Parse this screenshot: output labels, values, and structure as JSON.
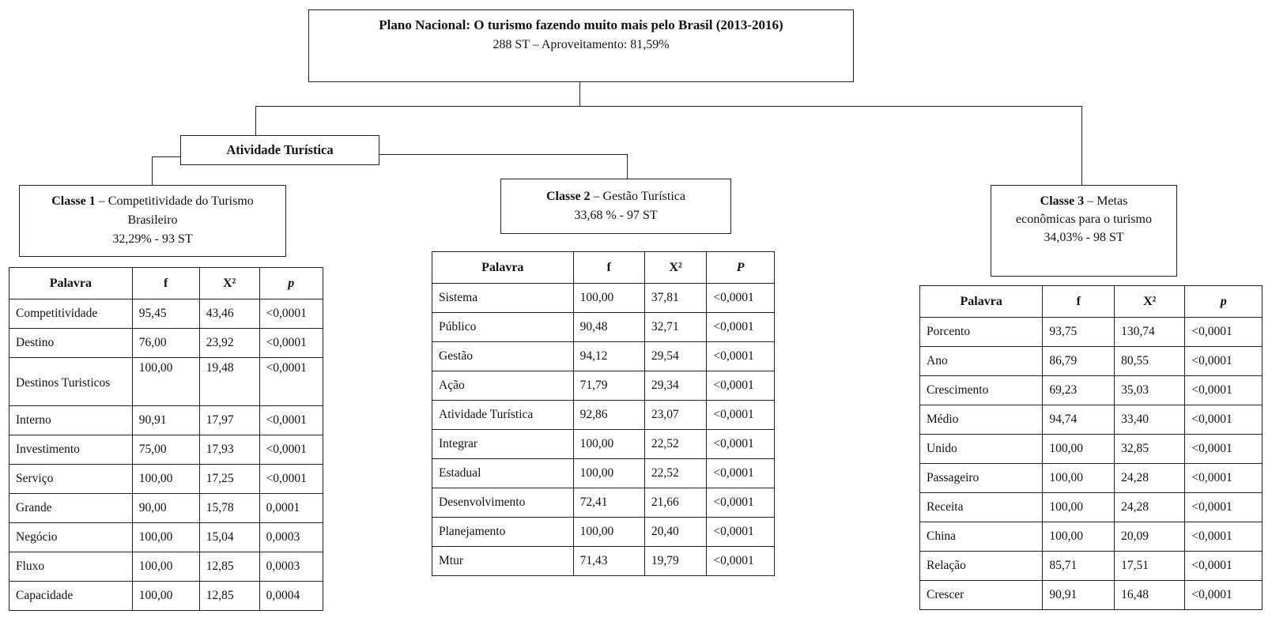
{
  "root": {
    "title": "Plano Nacional: O turismo fazendo  muito mais pelo Brasil (2013-2016)",
    "subtitle": "288 ST  – Aproveitamento:  81,59%"
  },
  "branch": {
    "label": "Atividade Turística"
  },
  "class1": {
    "title_bold": "Classe 1",
    "title_rest": " – Competitividade  do Turismo  Brasileiro",
    "stats": "32,29% - 93 ST"
  },
  "class2": {
    "title_bold": "Classe 2",
    "title_rest": " – Gestão Turística",
    "stats": "33,68 % - 97 ST"
  },
  "class3": {
    "title_bold": "Classe 3",
    "title_rest": " – Metas econômicas para o turismo",
    "stats": "34,03% - 98 ST"
  },
  "headers": {
    "t1": [
      "Palavra",
      "f",
      "X²",
      "p"
    ],
    "t2": [
      "Palavra",
      "f",
      "X²",
      "P"
    ],
    "t3": [
      "Palavra",
      "f",
      "X²",
      "p"
    ]
  },
  "table1": [
    [
      "Competitividade",
      "95,45",
      "43,46",
      "<0,0001"
    ],
    [
      "Destino",
      "76,00",
      "23,92",
      "<0,0001"
    ],
    [
      "Destinos Turisticos",
      "100,00",
      "19,48",
      "<0,0001"
    ],
    [
      "Interno",
      "90,91",
      "17,97",
      "<0,0001"
    ],
    [
      "Investimento",
      "75,00",
      "17,93",
      "<0,0001"
    ],
    [
      "Serviço",
      "100,00",
      "17,25",
      "<0,0001"
    ],
    [
      "Grande",
      "90,00",
      "15,78",
      "0,0001"
    ],
    [
      "Negócio",
      "100,00",
      "15,04",
      "0,0003"
    ],
    [
      "Fluxo",
      "100,00",
      "12,85",
      "0,0003"
    ],
    [
      "Capacidade",
      "100,00",
      "12,85",
      "0,0004"
    ]
  ],
  "table2": [
    [
      "Sistema",
      "100,00",
      "37,81",
      "<0,0001"
    ],
    [
      "Público",
      "90,48",
      "32,71",
      "<0,0001"
    ],
    [
      "Gestão",
      "94,12",
      "29,54",
      "<0,0001"
    ],
    [
      "Ação",
      "71,79",
      "29,34",
      "<0,0001"
    ],
    [
      "Atividade  Turística",
      "92,86",
      "23,07",
      "<0,0001"
    ],
    [
      "Integrar",
      "100,00",
      "22,52",
      "<0,0001"
    ],
    [
      "Estadual",
      "100,00",
      "22,52",
      "<0,0001"
    ],
    [
      "Desenvolvimento",
      "72,41",
      "21,66",
      "<0,0001"
    ],
    [
      "Planejamento",
      "100,00",
      "20,40",
      "<0,0001"
    ],
    [
      "Mtur",
      "71,43",
      "19,79",
      "<0,0001"
    ]
  ],
  "table3": [
    [
      "Porcento",
      "93,75",
      "130,74",
      "<0,0001"
    ],
    [
      "Ano",
      "86,79",
      "80,55",
      "<0,0001"
    ],
    [
      "Crescimento",
      "69,23",
      "35,03",
      "<0,0001"
    ],
    [
      "Médio",
      "94,74",
      "33,40",
      "<0,0001"
    ],
    [
      "Unido",
      "100,00",
      "32,85",
      "<0,0001"
    ],
    [
      "Passageiro",
      "100,00",
      "24,28",
      "<0,0001"
    ],
    [
      "Receita",
      "100,00",
      "24,28",
      "<0,0001"
    ],
    [
      "China",
      "100,00",
      "20,09",
      "<0,0001"
    ],
    [
      "Relação",
      "85,71",
      "17,51",
      "<0,0001"
    ],
    [
      "Crescer",
      "90,91",
      "16,48",
      "<0,0001"
    ]
  ]
}
